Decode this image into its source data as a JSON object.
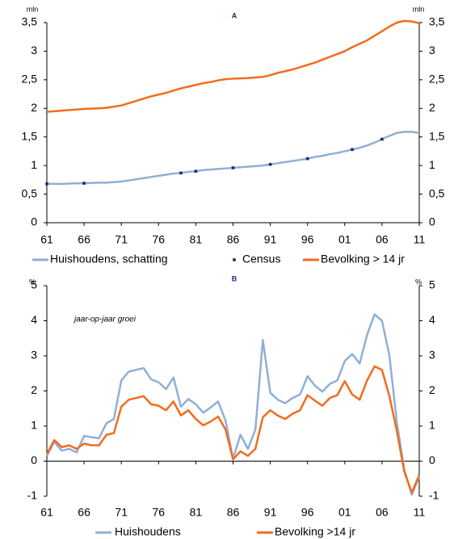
{
  "chart_data": [
    {
      "type": "line",
      "title": "A",
      "y_unit": "mln",
      "mirror_y": true,
      "legend": "bottom",
      "x": [
        1961,
        1962,
        1963,
        1964,
        1965,
        1966,
        1967,
        1968,
        1969,
        1970,
        1971,
        1972,
        1973,
        1974,
        1975,
        1976,
        1977,
        1978,
        1979,
        1980,
        1981,
        1982,
        1983,
        1984,
        1985,
        1986,
        1987,
        1988,
        1989,
        1990,
        1991,
        1992,
        1993,
        1994,
        1995,
        1996,
        1997,
        1998,
        1999,
        2000,
        2001,
        2002,
        2003,
        2004,
        2005,
        2006,
        2007,
        2008,
        2009,
        2010,
        2011
      ],
      "xlim": [
        1961,
        2011
      ],
      "xticks": [
        {
          "value": 1961,
          "label": "61"
        },
        {
          "value": 1966,
          "label": "66"
        },
        {
          "value": 1971,
          "label": "71"
        },
        {
          "value": 1976,
          "label": "76"
        },
        {
          "value": 1981,
          "label": "81"
        },
        {
          "value": 1986,
          "label": "86"
        },
        {
          "value": 1991,
          "label": "91"
        },
        {
          "value": 1996,
          "label": "96"
        },
        {
          "value": 2001,
          "label": "01"
        },
        {
          "value": 2006,
          "label": "06"
        },
        {
          "value": 2011,
          "label": "11"
        }
      ],
      "ylim": [
        0,
        3.5
      ],
      "yticks": [
        0,
        {
          "value": 0.5,
          "label": "0,5"
        },
        1,
        {
          "value": 1.5,
          "label": "1,5"
        },
        2,
        {
          "value": 2.5,
          "label": "2,5"
        },
        3,
        {
          "value": 3.5,
          "label": "3,5"
        }
      ],
      "series": [
        {
          "name": "Huishoudens, schatting",
          "color": "#8eb0d6",
          "values": [
            0.68,
            0.68,
            0.68,
            0.685,
            0.69,
            0.69,
            0.695,
            0.7,
            0.7,
            0.71,
            0.72,
            0.74,
            0.76,
            0.78,
            0.8,
            0.82,
            0.84,
            0.86,
            0.87,
            0.89,
            0.9,
            0.92,
            0.93,
            0.94,
            0.95,
            0.96,
            0.97,
            0.98,
            0.99,
            1.0,
            1.02,
            1.04,
            1.06,
            1.08,
            1.1,
            1.12,
            1.15,
            1.17,
            1.2,
            1.22,
            1.25,
            1.28,
            1.31,
            1.35,
            1.4,
            1.46,
            1.52,
            1.57,
            1.59,
            1.59,
            1.57
          ]
        },
        {
          "name": "Census",
          "type": "scatter",
          "color": "#1f2a7a",
          "x": [
            1961,
            1966,
            1979,
            1981,
            1986,
            1991,
            1996,
            2002,
            2006
          ],
          "values": [
            0.68,
            0.69,
            0.87,
            0.9,
            0.96,
            1.02,
            1.12,
            1.28,
            1.46
          ]
        },
        {
          "name": "Bevolking > 14 jr",
          "color": "#f26c1c",
          "values": [
            1.94,
            1.95,
            1.96,
            1.97,
            1.98,
            1.99,
            1.995,
            2.0,
            2.01,
            2.03,
            2.05,
            2.09,
            2.13,
            2.17,
            2.21,
            2.24,
            2.27,
            2.31,
            2.35,
            2.38,
            2.41,
            2.44,
            2.46,
            2.49,
            2.51,
            2.52,
            2.525,
            2.53,
            2.54,
            2.55,
            2.58,
            2.62,
            2.65,
            2.68,
            2.72,
            2.76,
            2.8,
            2.85,
            2.9,
            2.95,
            3.0,
            3.07,
            3.13,
            3.19,
            3.27,
            3.35,
            3.43,
            3.5,
            3.53,
            3.52,
            3.49
          ]
        }
      ]
    },
    {
      "type": "line",
      "title": "B",
      "y_unit": "%",
      "mirror_y": true,
      "legend": "bottom",
      "annotation": "jaar-op-jaar groei",
      "x": [
        1961,
        1962,
        1963,
        1964,
        1965,
        1966,
        1967,
        1968,
        1969,
        1970,
        1971,
        1972,
        1973,
        1974,
        1975,
        1976,
        1977,
        1978,
        1979,
        1980,
        1981,
        1982,
        1983,
        1984,
        1985,
        1986,
        1987,
        1988,
        1989,
        1990,
        1991,
        1992,
        1993,
        1994,
        1995,
        1996,
        1997,
        1998,
        1999,
        2000,
        2001,
        2002,
        2003,
        2004,
        2005,
        2006,
        2007,
        2008,
        2009,
        2010,
        2011
      ],
      "xlim": [
        1961,
        2011
      ],
      "xticks": [
        {
          "value": 1961,
          "label": "61"
        },
        {
          "value": 1966,
          "label": "66"
        },
        {
          "value": 1971,
          "label": "71"
        },
        {
          "value": 1976,
          "label": "76"
        },
        {
          "value": 1981,
          "label": "81"
        },
        {
          "value": 1986,
          "label": "86"
        },
        {
          "value": 1991,
          "label": "91"
        },
        {
          "value": 1996,
          "label": "96"
        },
        {
          "value": 2001,
          "label": "01"
        },
        {
          "value": 2006,
          "label": "06"
        },
        {
          "value": 2011,
          "label": "11"
        }
      ],
      "ylim": [
        -1,
        5
      ],
      "yticks": [
        -1,
        0,
        1,
        2,
        3,
        4,
        5
      ],
      "series": [
        {
          "name": "Huishoudens",
          "color": "#8eb0d6",
          "values": [
            0.15,
            0.55,
            0.3,
            0.35,
            0.25,
            0.72,
            0.68,
            0.65,
            1.08,
            1.2,
            2.3,
            2.55,
            2.6,
            2.65,
            2.33,
            2.25,
            2.05,
            2.38,
            1.55,
            1.77,
            1.62,
            1.38,
            1.53,
            1.7,
            1.15,
            0.07,
            0.75,
            0.35,
            0.9,
            3.45,
            1.95,
            1.75,
            1.65,
            1.8,
            1.9,
            2.42,
            2.15,
            1.98,
            2.2,
            2.3,
            2.85,
            3.05,
            2.78,
            3.6,
            4.18,
            4.0,
            3.0,
            1.1,
            -0.25,
            -0.95,
            -0.45
          ]
        },
        {
          "name": "Bevolking >14 jr",
          "color": "#f26c1c",
          "values": [
            0.2,
            0.6,
            0.4,
            0.45,
            0.35,
            0.5,
            0.45,
            0.45,
            0.75,
            0.8,
            1.55,
            1.75,
            1.8,
            1.85,
            1.62,
            1.58,
            1.45,
            1.7,
            1.3,
            1.45,
            1.2,
            1.02,
            1.13,
            1.27,
            0.9,
            0.05,
            0.28,
            0.15,
            0.35,
            1.25,
            1.45,
            1.3,
            1.2,
            1.35,
            1.45,
            1.88,
            1.72,
            1.58,
            1.8,
            1.88,
            2.28,
            1.9,
            1.75,
            2.3,
            2.7,
            2.6,
            1.85,
            0.85,
            -0.3,
            -0.9,
            -0.4
          ]
        }
      ]
    }
  ]
}
